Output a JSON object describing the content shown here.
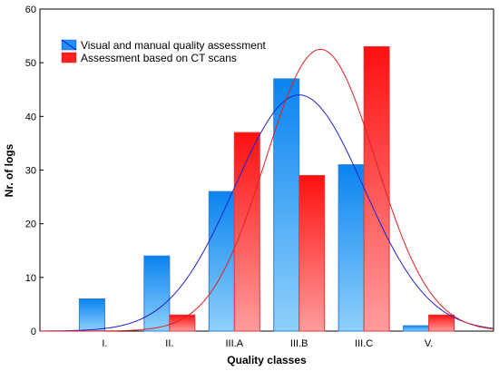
{
  "chart_data": {
    "type": "bar",
    "title": "",
    "xlabel": "Quality classes",
    "ylabel": "Nr. of logs",
    "categories": [
      "I.",
      "II.",
      "III.A",
      "III.B",
      "III.C",
      "V."
    ],
    "ylim": [
      0,
      60
    ],
    "yticks": [
      0,
      10,
      20,
      30,
      40,
      50,
      60
    ],
    "grid": false,
    "legend_position": "top-left",
    "series": [
      {
        "name": "Visual and manual quality assessment",
        "values": [
          6,
          14,
          26,
          47,
          31,
          1
        ],
        "color": "#1e90ff",
        "fit_curve": {
          "type": "normal",
          "peak": 44,
          "peak_category_index": 3.0,
          "sigma": 1.0,
          "color": "#2020d0"
        }
      },
      {
        "name": "Assessment based on CT scans",
        "values": [
          0,
          3,
          37,
          29,
          53,
          3
        ],
        "color": "#ff2020",
        "fit_curve": {
          "type": "normal",
          "peak": 52.5,
          "peak_category_index": 3.33,
          "sigma": 0.85,
          "color": "#e02020"
        }
      }
    ]
  }
}
